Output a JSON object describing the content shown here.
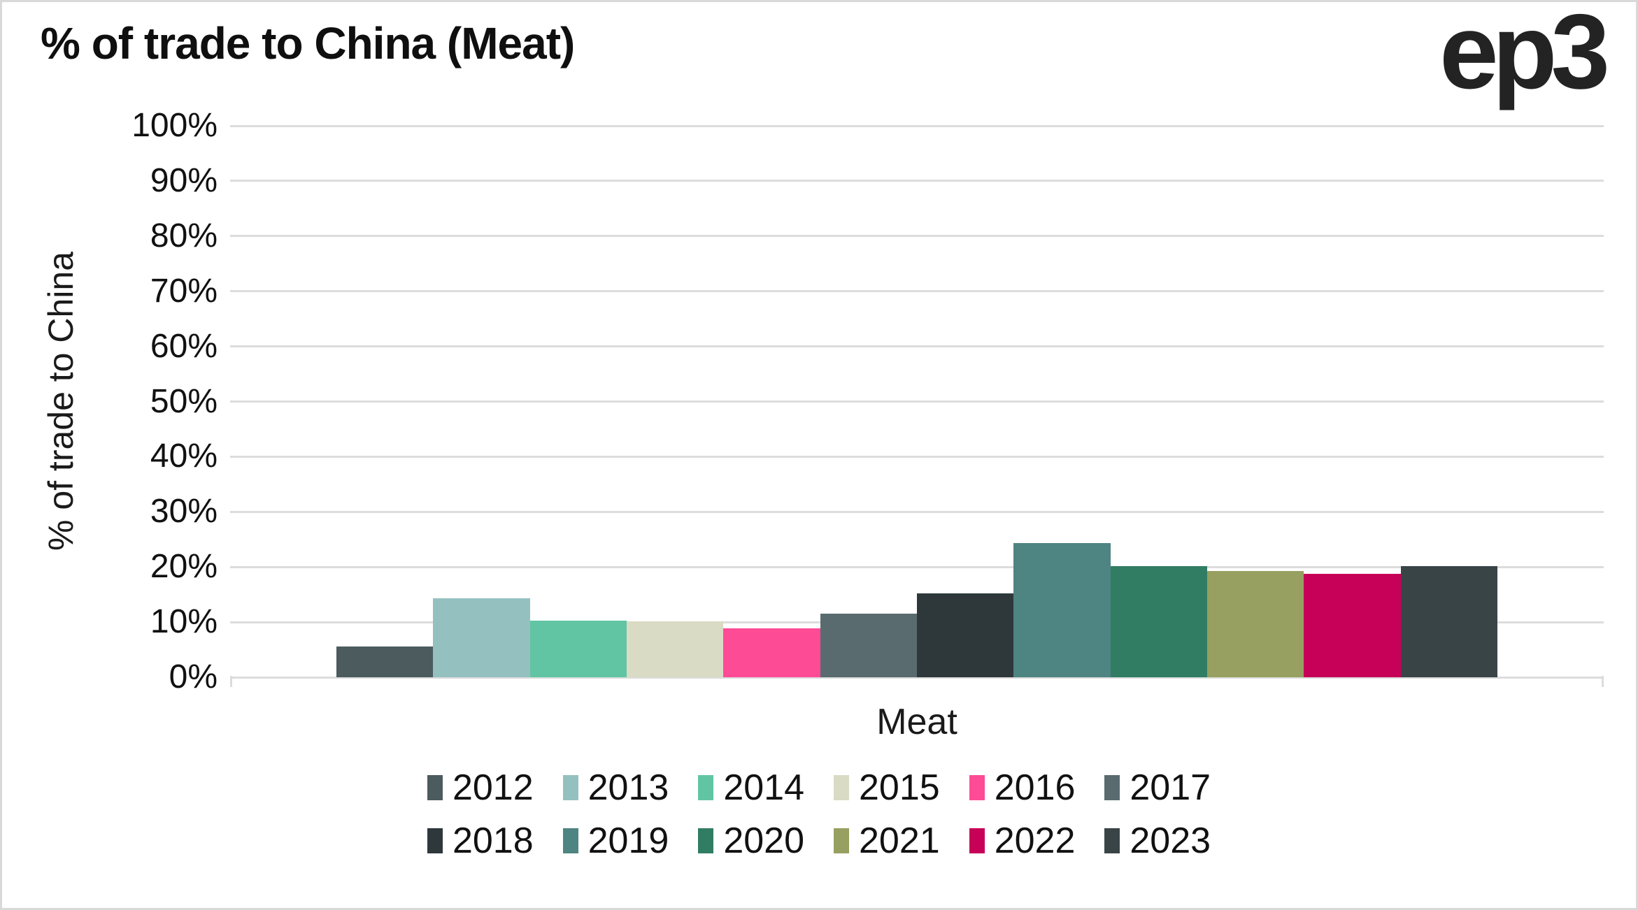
{
  "page": {
    "title": "% of trade to China (Meat)",
    "logo_text": "ep3"
  },
  "chart_data": {
    "type": "bar",
    "title": "% of trade to China (Meat)",
    "xlabel": "Meat",
    "ylabel": "% of trade to China",
    "categories": [
      "Meat"
    ],
    "ylim": [
      0,
      100
    ],
    "yticks": [
      0,
      10,
      20,
      30,
      40,
      50,
      60,
      70,
      80,
      90,
      100
    ],
    "ytick_suffix": "%",
    "grid": true,
    "legend_position": "bottom",
    "legend_rows": [
      [
        "2012",
        "2013",
        "2014",
        "2015",
        "2016",
        "2017"
      ],
      [
        "2018",
        "2019",
        "2020",
        "2021",
        "2022",
        "2023"
      ]
    ],
    "series": [
      {
        "name": "2012",
        "value": 5.6,
        "color": "#4b5b5e"
      },
      {
        "name": "2013",
        "value": 14.3,
        "color": "#95c0c0"
      },
      {
        "name": "2014",
        "value": 10.3,
        "color": "#61c5a3"
      },
      {
        "name": "2015",
        "value": 10.2,
        "color": "#d9dbc4"
      },
      {
        "name": "2016",
        "value": 8.9,
        "color": "#fe4b96"
      },
      {
        "name": "2017",
        "value": 11.5,
        "color": "#596b6f"
      },
      {
        "name": "2018",
        "value": 15.2,
        "color": "#2e383b"
      },
      {
        "name": "2019",
        "value": 24.3,
        "color": "#4e8481"
      },
      {
        "name": "2020",
        "value": 20.1,
        "color": "#317d64"
      },
      {
        "name": "2021",
        "value": 19.3,
        "color": "#97a060"
      },
      {
        "name": "2022",
        "value": 18.7,
        "color": "#c60157"
      },
      {
        "name": "2023",
        "value": 20.2,
        "color": "#394447"
      }
    ]
  },
  "style": {
    "background": "#ffffff",
    "border_color": "#d9d9d9",
    "grid_color": "#dcdcdc",
    "text_color": "#111111",
    "title_color": "#0f0f0f",
    "logo_color": "#232323"
  }
}
